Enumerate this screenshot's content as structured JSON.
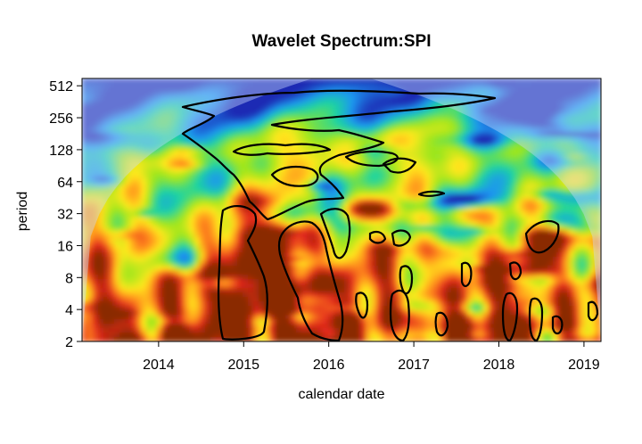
{
  "chart_data": {
    "type": "heatmap",
    "title": "Wavelet Spectrum:SPI",
    "xlabel": "calendar date",
    "ylabel": "period",
    "x_ticks": [
      "2014",
      "2015",
      "2016",
      "2017",
      "2018",
      "2019"
    ],
    "x_tick_values": [
      2014,
      2015,
      2016,
      2017,
      2018,
      2019
    ],
    "xlim": [
      2013.1,
      2019.2
    ],
    "y_ticks": [
      "2",
      "4",
      "8",
      "16",
      "32",
      "64",
      "128",
      "256",
      "512"
    ],
    "y_tick_values": [
      2,
      4,
      8,
      16,
      32,
      64,
      128,
      256,
      512
    ],
    "ylim": [
      2,
      600
    ],
    "y_scale": "log2",
    "colormap": [
      "#8a2c00",
      "#e0261a",
      "#ff8a1e",
      "#ffe81a",
      "#9ce61e",
      "#1ed4a0",
      "#1e96f0",
      "#1e2ab4"
    ],
    "outside_cone_tint": "#c8dcff",
    "contour_level": "significance"
  }
}
